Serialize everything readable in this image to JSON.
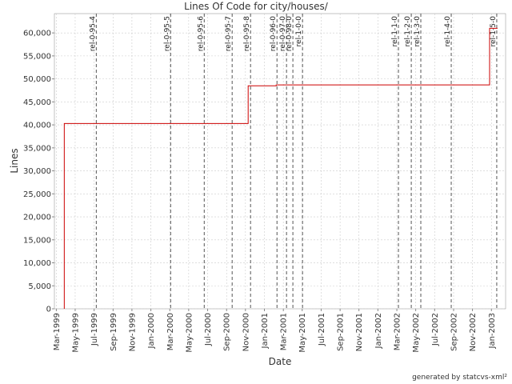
{
  "chart_data": {
    "type": "line",
    "title": "Lines Of Code for city/houses/",
    "x_label": "Date",
    "y_label": "Lines",
    "footer": "generated by statcvs-xml²",
    "color": "#cc0000",
    "grid": true,
    "x": [
      1999.237,
      1999.237,
      2000.857,
      2000.857,
      2001.104,
      2001.104,
      2002.984,
      2002.984,
      2003.054
    ],
    "values": [
      0,
      40300,
      40300,
      48500,
      48500,
      48700,
      48700,
      61000,
      61000
    ],
    "xlim": [
      1999.15,
      2003.125
    ],
    "xticks": [
      {
        "value": 1999.167,
        "label": "Mar-1999"
      },
      {
        "value": 1999.333,
        "label": "May-1999"
      },
      {
        "value": 1999.5,
        "label": "Jul-1999"
      },
      {
        "value": 1999.667,
        "label": "Sep-1999"
      },
      {
        "value": 1999.833,
        "label": "Nov-1999"
      },
      {
        "value": 2000.0,
        "label": "Jan-2000"
      },
      {
        "value": 2000.167,
        "label": "Mar-2000"
      },
      {
        "value": 2000.333,
        "label": "May-2000"
      },
      {
        "value": 2000.5,
        "label": "Jul-2000"
      },
      {
        "value": 2000.667,
        "label": "Sep-2000"
      },
      {
        "value": 2000.833,
        "label": "Nov-2000"
      },
      {
        "value": 2001.0,
        "label": "Jan-2001"
      },
      {
        "value": 2001.167,
        "label": "Mar-2001"
      },
      {
        "value": 2001.333,
        "label": "May-2001"
      },
      {
        "value": 2001.5,
        "label": "Jul-2001"
      },
      {
        "value": 2001.667,
        "label": "Sep-2001"
      },
      {
        "value": 2001.833,
        "label": "Nov-2001"
      },
      {
        "value": 2002.0,
        "label": "Jan-2002"
      },
      {
        "value": 2002.167,
        "label": "Mar-2002"
      },
      {
        "value": 2002.333,
        "label": "May-2002"
      },
      {
        "value": 2002.5,
        "label": "Jul-2002"
      },
      {
        "value": 2002.667,
        "label": "Sep-2002"
      },
      {
        "value": 2002.833,
        "label": "Nov-2002"
      },
      {
        "value": 2003.0,
        "label": "Jan-2003"
      }
    ],
    "ylim": [
      0,
      64200
    ],
    "yticks": [
      0,
      {
        "value": 5000,
        "label": "5,000"
      },
      {
        "value": 10000,
        "label": "10,000"
      },
      {
        "value": 15000,
        "label": "15,000"
      },
      {
        "value": 20000,
        "label": "20,000"
      },
      {
        "value": 25000,
        "label": "25,000"
      },
      {
        "value": 30000,
        "label": "30,000"
      },
      {
        "value": 35000,
        "label": "35,000"
      },
      {
        "value": 40000,
        "label": "40,000"
      },
      {
        "value": 45000,
        "label": "45,000"
      },
      {
        "value": 50000,
        "label": "50,000"
      },
      {
        "value": 55000,
        "label": "55,000"
      },
      {
        "value": 60000,
        "label": "60,000"
      }
    ],
    "annotations": [
      {
        "label": "rel-0-95-4",
        "x": 1999.519
      },
      {
        "label": "rel-0-95-5",
        "x": 2000.174
      },
      {
        "label": "rel-0-95-6",
        "x": 2000.47
      },
      {
        "label": "rel-0-95-7",
        "x": 2000.716
      },
      {
        "label": "rel-0-95-8",
        "x": 2000.878
      },
      {
        "label": "rel-0-96-0",
        "x": 2001.111
      },
      {
        "label": "rel-0-97-0",
        "x": 2001.195
      },
      {
        "label": "rel-0-98-0",
        "x": 2001.251
      },
      {
        "label": "rel-1-0-0",
        "x": 2001.336
      },
      {
        "label": "rel-1-1-0",
        "x": 2002.181
      },
      {
        "label": "rel-1-2-0",
        "x": 2002.294
      },
      {
        "label": "rel-1-3-0",
        "x": 2002.378
      },
      {
        "label": "rel-1-4-0",
        "x": 2002.646
      },
      {
        "label": "rel-1-5-0",
        "x": 2003.047
      }
    ]
  }
}
